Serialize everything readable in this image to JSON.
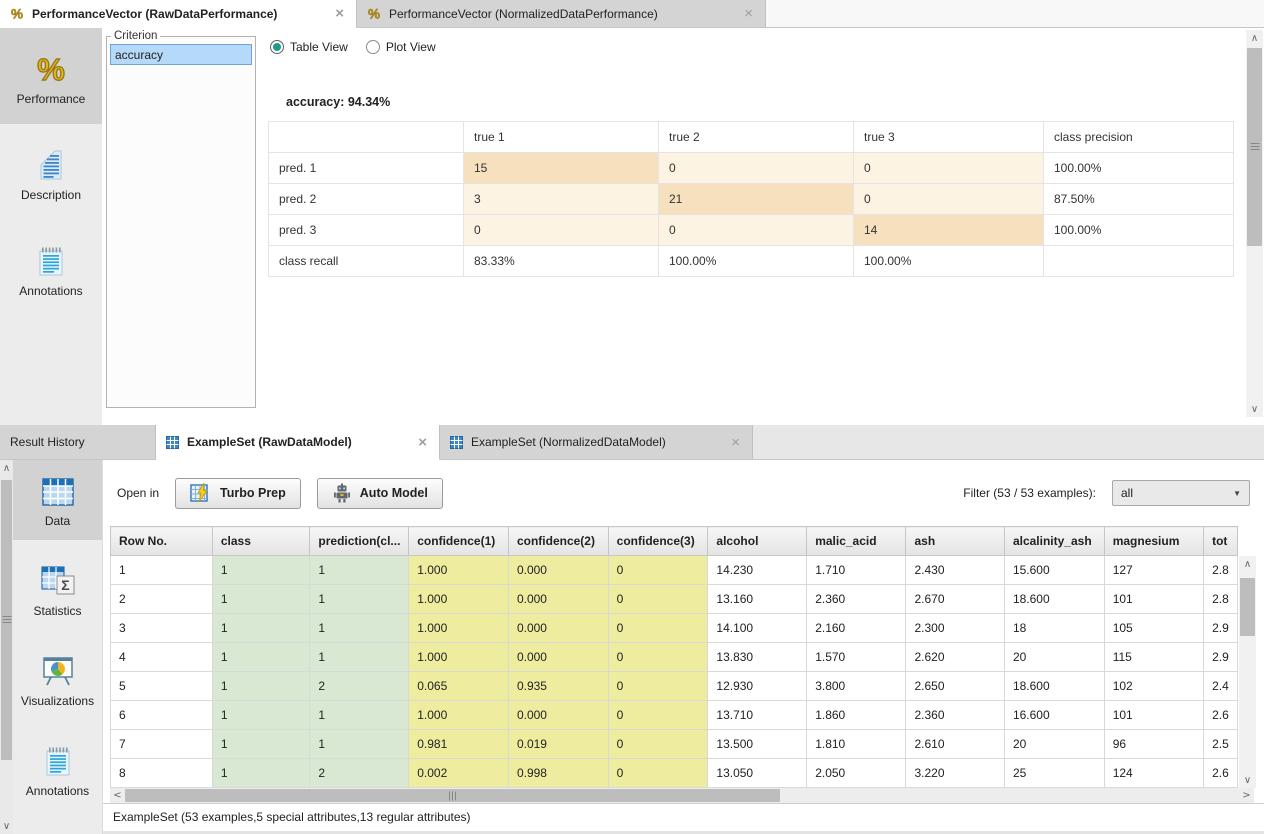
{
  "top_panel": {
    "tabs": [
      {
        "label": "PerformanceVector (RawDataPerformance)",
        "icon": "percent",
        "active": true,
        "closable": true
      },
      {
        "label": "PerformanceVector (NormalizedDataPerformance)",
        "icon": "percent",
        "active": false,
        "closable": true
      }
    ],
    "sidebar": [
      {
        "label": "Performance",
        "icon": "performance",
        "selected": true
      },
      {
        "label": "Description",
        "icon": "description",
        "selected": false
      },
      {
        "label": "Annotations",
        "icon": "annotations",
        "selected": false
      }
    ],
    "criterion": {
      "legend": "Criterion",
      "items": [
        {
          "label": "accuracy",
          "selected": true
        }
      ]
    },
    "view_options": [
      {
        "label": "Table View",
        "selected": true
      },
      {
        "label": "Plot View",
        "selected": false
      }
    ],
    "accuracy_label": "accuracy: 94.34%",
    "confusion_matrix": {
      "col_headers": [
        "",
        "true 1",
        "true 2",
        "true 3",
        "class precision"
      ],
      "rows": [
        {
          "label": "pred. 1",
          "values": [
            "15",
            "0",
            "0"
          ],
          "class_precision": "100.00%"
        },
        {
          "label": "pred. 2",
          "values": [
            "3",
            "21",
            "0"
          ],
          "class_precision": "87.50%"
        },
        {
          "label": "pred. 3",
          "values": [
            "0",
            "0",
            "14"
          ],
          "class_precision": "100.00%"
        },
        {
          "label": "class recall",
          "values": [
            "83.33%",
            "100.00%",
            "100.00%"
          ],
          "class_precision": ""
        }
      ]
    }
  },
  "bottom_panel": {
    "tabs": [
      {
        "label": "Result History",
        "icon": null,
        "active": false,
        "closable": false
      },
      {
        "label": "ExampleSet (RawDataModel)",
        "icon": "table",
        "active": true,
        "closable": true
      },
      {
        "label": "ExampleSet (NormalizedDataModel)",
        "icon": "table",
        "active": false,
        "closable": true
      }
    ],
    "sidebar": [
      {
        "label": "Data",
        "icon": "data",
        "selected": true
      },
      {
        "label": "Statistics",
        "icon": "statistics",
        "selected": false
      },
      {
        "label": "Visualizations",
        "icon": "visualizations",
        "selected": false
      },
      {
        "label": "Annotations",
        "icon": "annotations",
        "selected": false
      }
    ],
    "toolbar": {
      "open_in_label": "Open in",
      "turbo_prep_label": "Turbo Prep",
      "auto_model_label": "Auto Model",
      "filter_label": "Filter (53 / 53 examples):",
      "filter_value": "all"
    },
    "data_table": {
      "headers": [
        "Row No.",
        "class",
        "prediction(cl...",
        "confidence(1)",
        "confidence(2)",
        "confidence(3)",
        "alcohol",
        "malic_acid",
        "ash",
        "alcalinity_ash",
        "magnesium",
        "tot"
      ],
      "rows": [
        [
          "1",
          "1",
          "1",
          "1.000",
          "0.000",
          "0",
          "14.230",
          "1.710",
          "2.430",
          "15.600",
          "127",
          "2.8"
        ],
        [
          "2",
          "1",
          "1",
          "1.000",
          "0.000",
          "0",
          "13.160",
          "2.360",
          "2.670",
          "18.600",
          "101",
          "2.8"
        ],
        [
          "3",
          "1",
          "1",
          "1.000",
          "0.000",
          "0",
          "14.100",
          "2.160",
          "2.300",
          "18",
          "105",
          "2.9"
        ],
        [
          "4",
          "1",
          "1",
          "1.000",
          "0.000",
          "0",
          "13.830",
          "1.570",
          "2.620",
          "20",
          "115",
          "2.9"
        ],
        [
          "5",
          "1",
          "2",
          "0.065",
          "0.935",
          "0",
          "12.930",
          "3.800",
          "2.650",
          "18.600",
          "102",
          "2.4"
        ],
        [
          "6",
          "1",
          "1",
          "1.000",
          "0.000",
          "0",
          "13.710",
          "1.860",
          "2.360",
          "16.600",
          "101",
          "2.6"
        ],
        [
          "7",
          "1",
          "1",
          "0.981",
          "0.019",
          "0",
          "13.500",
          "1.810",
          "2.610",
          "20",
          "96",
          "2.5"
        ],
        [
          "8",
          "1",
          "2",
          "0.002",
          "0.998",
          "0",
          "13.050",
          "2.050",
          "3.220",
          "25",
          "124",
          "2.6"
        ]
      ]
    },
    "status_bar": "ExampleSet (53 examples,5 special attributes,13 regular attributes)"
  },
  "colors": {
    "accent_teal": "#1a9c8b",
    "matrix_diagonal": "#f7e0bd",
    "matrix_off_diagonal": "#fdf3e3",
    "cell_green": "#d9e8d3",
    "cell_yellow": "#eeed9f",
    "selection_blue": "#b5d9f8"
  }
}
